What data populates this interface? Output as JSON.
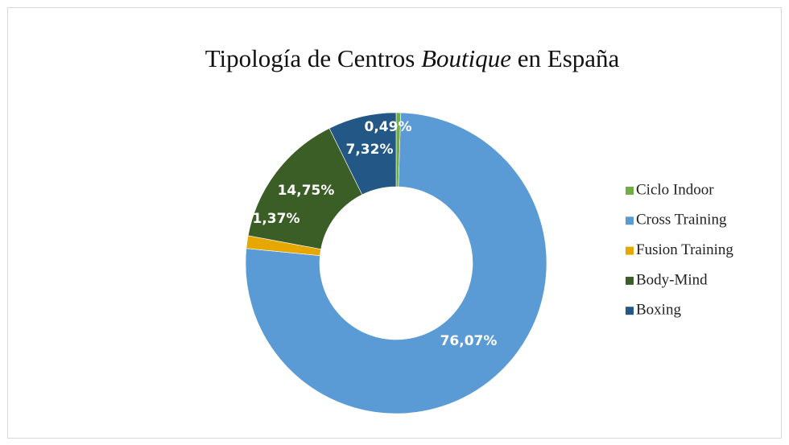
{
  "chart_data": {
    "type": "donut",
    "title": [
      {
        "text": "Tipología de Centros "
      },
      {
        "text": "Boutique",
        "italic": true
      },
      {
        "text": " en España"
      }
    ],
    "categories": [
      "Ciclo Indoor",
      "Cross Training",
      "Fusion Training",
      "Body-Mind",
      "Boxing"
    ],
    "values": [
      0.49,
      76.07,
      1.37,
      14.75,
      7.32
    ],
    "value_labels": [
      "0,49%",
      "76,07%",
      "1,37%",
      "14,75%",
      "7,32%"
    ],
    "colors": [
      "#70ad47",
      "#5b9bd5",
      "#e6a800",
      "#3b5e26",
      "#235786"
    ],
    "legend": "right"
  }
}
